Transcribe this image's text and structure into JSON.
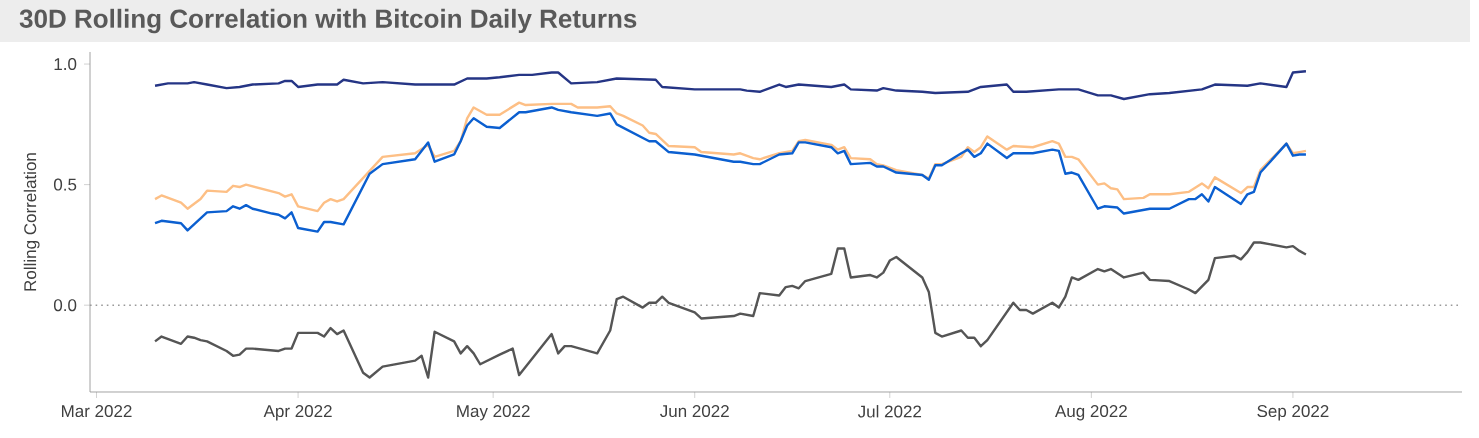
{
  "chart_data": {
    "type": "line",
    "title": "30D Rolling Correlation with Bitcoin Daily Returns",
    "ylabel": "Rolling Correlation",
    "xlim": [
      "2022-02-28",
      "2022-09-27"
    ],
    "ylim": [
      -0.36,
      1.05
    ],
    "xticks": [
      {
        "value": "2022-03-01",
        "label": "Mar 2022"
      },
      {
        "value": "2022-04-01",
        "label": "Apr 2022"
      },
      {
        "value": "2022-05-01",
        "label": "May 2022"
      },
      {
        "value": "2022-06-01",
        "label": "Jun 2022"
      },
      {
        "value": "2022-07-01",
        "label": "Jul 2022"
      },
      {
        "value": "2022-08-01",
        "label": "Aug 2022"
      },
      {
        "value": "2022-09-01",
        "label": "Sep 2022"
      }
    ],
    "yticks": [
      {
        "value": 0,
        "label": "0.0"
      },
      {
        "value": 0.5,
        "label": "0.5"
      },
      {
        "value": 1,
        "label": "1.0"
      }
    ],
    "ref_lines": [
      {
        "axis": "y",
        "value": 0,
        "color": "#999999",
        "line_style": "dotted"
      }
    ],
    "series": [
      {
        "color": "#fdbf85",
        "x": [
          "2022-03-10",
          "2022-03-11",
          "2022-03-14",
          "2022-03-15",
          "2022-03-17",
          "2022-03-18",
          "2022-03-21",
          "2022-03-22",
          "2022-03-23",
          "2022-03-24",
          "2022-03-29",
          "2022-03-30",
          "2022-03-31",
          "2022-04-01",
          "2022-04-04",
          "2022-04-05",
          "2022-04-06",
          "2022-04-07",
          "2022-04-08",
          "2022-04-14",
          "2022-04-19",
          "2022-04-21",
          "2022-04-22",
          "2022-04-25",
          "2022-04-26",
          "2022-04-27",
          "2022-04-28",
          "2022-04-30",
          "2022-05-02",
          "2022-05-05",
          "2022-05-06",
          "2022-05-10",
          "2022-05-13",
          "2022-05-14",
          "2022-05-17",
          "2022-05-19",
          "2022-05-20",
          "2022-05-21",
          "2022-05-24",
          "2022-05-25",
          "2022-05-26",
          "2022-05-28",
          "2022-06-01",
          "2022-06-02",
          "2022-06-07",
          "2022-06-08",
          "2022-06-10",
          "2022-06-11",
          "2022-06-14",
          "2022-06-16",
          "2022-06-17",
          "2022-06-18",
          "2022-06-22",
          "2022-06-23",
          "2022-06-24",
          "2022-06-25",
          "2022-06-28",
          "2022-06-29",
          "2022-06-30",
          "2022-07-02",
          "2022-07-06",
          "2022-07-07",
          "2022-07-08",
          "2022-07-09",
          "2022-07-12",
          "2022-07-13",
          "2022-07-14",
          "2022-07-15",
          "2022-07-16",
          "2022-07-19",
          "2022-07-20",
          "2022-07-23",
          "2022-07-26",
          "2022-07-27",
          "2022-07-28",
          "2022-07-29",
          "2022-07-30",
          "2022-08-02",
          "2022-08-03",
          "2022-08-04",
          "2022-08-05",
          "2022-08-06",
          "2022-08-09",
          "2022-08-10",
          "2022-08-13",
          "2022-08-16",
          "2022-08-18",
          "2022-08-19",
          "2022-08-20",
          "2022-08-24",
          "2022-08-25",
          "2022-08-26",
          "2022-08-27",
          "2022-08-31",
          "2022-09-01",
          "2022-09-02",
          "2022-09-03"
        ],
        "values": [
          0.44,
          0.455,
          0.425,
          0.4,
          0.44,
          0.475,
          0.47,
          0.495,
          0.49,
          0.5,
          0.465,
          0.45,
          0.46,
          0.41,
          0.39,
          0.425,
          0.44,
          0.43,
          0.44,
          0.615,
          0.63,
          0.665,
          0.615,
          0.64,
          0.68,
          0.775,
          0.82,
          0.79,
          0.79,
          0.84,
          0.83,
          0.835,
          0.835,
          0.82,
          0.82,
          0.825,
          0.795,
          0.785,
          0.745,
          0.715,
          0.71,
          0.66,
          0.655,
          0.635,
          0.625,
          0.63,
          0.61,
          0.605,
          0.63,
          0.64,
          0.68,
          0.685,
          0.665,
          0.645,
          0.655,
          0.61,
          0.605,
          0.585,
          0.58,
          0.56,
          0.54,
          0.525,
          0.585,
          0.585,
          0.615,
          0.655,
          0.635,
          0.655,
          0.7,
          0.645,
          0.66,
          0.655,
          0.68,
          0.67,
          0.615,
          0.615,
          0.605,
          0.5,
          0.505,
          0.485,
          0.48,
          0.44,
          0.445,
          0.46,
          0.46,
          0.47,
          0.505,
          0.485,
          0.53,
          0.465,
          0.49,
          0.49,
          0.56,
          0.67,
          0.63,
          0.635,
          0.64
        ]
      },
      {
        "color": "#0b5fd0",
        "x": [
          "2022-03-10",
          "2022-03-11",
          "2022-03-14",
          "2022-03-15",
          "2022-03-18",
          "2022-03-21",
          "2022-03-22",
          "2022-03-23",
          "2022-03-24",
          "2022-03-25",
          "2022-03-28",
          "2022-03-29",
          "2022-03-30",
          "2022-03-31",
          "2022-04-01",
          "2022-04-04",
          "2022-04-05",
          "2022-04-06",
          "2022-04-08",
          "2022-04-12",
          "2022-04-14",
          "2022-04-19",
          "2022-04-21",
          "2022-04-22",
          "2022-04-25",
          "2022-04-26",
          "2022-04-27",
          "2022-04-28",
          "2022-04-30",
          "2022-05-02",
          "2022-05-05",
          "2022-05-06",
          "2022-05-10",
          "2022-05-11",
          "2022-05-13",
          "2022-05-17",
          "2022-05-19",
          "2022-05-20",
          "2022-05-25",
          "2022-05-26",
          "2022-05-28",
          "2022-06-01",
          "2022-06-07",
          "2022-06-08",
          "2022-06-10",
          "2022-06-11",
          "2022-06-14",
          "2022-06-16",
          "2022-06-17",
          "2022-06-18",
          "2022-06-22",
          "2022-06-23",
          "2022-06-24",
          "2022-06-25",
          "2022-06-28",
          "2022-06-29",
          "2022-06-30",
          "2022-07-02",
          "2022-07-06",
          "2022-07-07",
          "2022-07-08",
          "2022-07-09",
          "2022-07-12",
          "2022-07-13",
          "2022-07-14",
          "2022-07-15",
          "2022-07-16",
          "2022-07-19",
          "2022-07-20",
          "2022-07-23",
          "2022-07-26",
          "2022-07-27",
          "2022-07-28",
          "2022-07-29",
          "2022-07-30",
          "2022-08-02",
          "2022-08-03",
          "2022-08-05",
          "2022-08-06",
          "2022-08-10",
          "2022-08-13",
          "2022-08-16",
          "2022-08-17",
          "2022-08-18",
          "2022-08-19",
          "2022-08-20",
          "2022-08-24",
          "2022-08-25",
          "2022-08-26",
          "2022-08-27",
          "2022-08-31",
          "2022-09-01",
          "2022-09-02",
          "2022-09-03"
        ],
        "values": [
          0.34,
          0.35,
          0.34,
          0.31,
          0.385,
          0.39,
          0.41,
          0.4,
          0.415,
          0.4,
          0.38,
          0.375,
          0.36,
          0.385,
          0.32,
          0.305,
          0.345,
          0.345,
          0.335,
          0.545,
          0.585,
          0.605,
          0.675,
          0.595,
          0.625,
          0.68,
          0.745,
          0.775,
          0.74,
          0.735,
          0.8,
          0.8,
          0.82,
          0.81,
          0.8,
          0.785,
          0.795,
          0.75,
          0.68,
          0.68,
          0.635,
          0.625,
          0.595,
          0.595,
          0.585,
          0.585,
          0.625,
          0.63,
          0.675,
          0.675,
          0.655,
          0.63,
          0.64,
          0.585,
          0.59,
          0.575,
          0.575,
          0.55,
          0.54,
          0.52,
          0.58,
          0.58,
          0.63,
          0.645,
          0.615,
          0.63,
          0.67,
          0.61,
          0.63,
          0.63,
          0.645,
          0.64,
          0.545,
          0.55,
          0.54,
          0.4,
          0.41,
          0.405,
          0.38,
          0.4,
          0.4,
          0.44,
          0.44,
          0.46,
          0.43,
          0.49,
          0.42,
          0.46,
          0.47,
          0.55,
          0.67,
          0.62,
          0.625,
          0.625
        ]
      },
      {
        "color": "#253585",
        "x": [
          "2022-03-10",
          "2022-03-12",
          "2022-03-15",
          "2022-03-16",
          "2022-03-18",
          "2022-03-21",
          "2022-03-23",
          "2022-03-25",
          "2022-03-29",
          "2022-03-30",
          "2022-03-31",
          "2022-04-01",
          "2022-04-04",
          "2022-04-07",
          "2022-04-08",
          "2022-04-11",
          "2022-04-14",
          "2022-04-19",
          "2022-04-22",
          "2022-04-25",
          "2022-04-27",
          "2022-04-30",
          "2022-05-02",
          "2022-05-05",
          "2022-05-07",
          "2022-05-10",
          "2022-05-11",
          "2022-05-13",
          "2022-05-17",
          "2022-05-20",
          "2022-05-26",
          "2022-05-27",
          "2022-06-01",
          "2022-06-08",
          "2022-06-09",
          "2022-06-11",
          "2022-06-14",
          "2022-06-15",
          "2022-06-17",
          "2022-06-22",
          "2022-06-24",
          "2022-06-25",
          "2022-06-29",
          "2022-06-30",
          "2022-07-02",
          "2022-07-06",
          "2022-07-08",
          "2022-07-13",
          "2022-07-15",
          "2022-07-19",
          "2022-07-20",
          "2022-07-22",
          "2022-07-27",
          "2022-07-30",
          "2022-08-02",
          "2022-08-04",
          "2022-08-06",
          "2022-08-10",
          "2022-08-13",
          "2022-08-18",
          "2022-08-20",
          "2022-08-25",
          "2022-08-27",
          "2022-08-31",
          "2022-09-01",
          "2022-09-03"
        ],
        "values": [
          0.91,
          0.92,
          0.92,
          0.925,
          0.915,
          0.9,
          0.905,
          0.915,
          0.92,
          0.93,
          0.93,
          0.905,
          0.915,
          0.915,
          0.935,
          0.92,
          0.925,
          0.915,
          0.915,
          0.915,
          0.94,
          0.94,
          0.945,
          0.955,
          0.955,
          0.965,
          0.965,
          0.92,
          0.925,
          0.94,
          0.935,
          0.905,
          0.895,
          0.895,
          0.89,
          0.885,
          0.915,
          0.905,
          0.915,
          0.905,
          0.915,
          0.895,
          0.89,
          0.9,
          0.89,
          0.885,
          0.88,
          0.885,
          0.905,
          0.915,
          0.885,
          0.885,
          0.895,
          0.895,
          0.87,
          0.87,
          0.855,
          0.875,
          0.88,
          0.895,
          0.915,
          0.91,
          0.92,
          0.905,
          0.965,
          0.97
        ]
      },
      {
        "color": "#555555",
        "x": [
          "2022-03-10",
          "2022-03-11",
          "2022-03-14",
          "2022-03-15",
          "2022-03-16",
          "2022-03-17",
          "2022-03-18",
          "2022-03-21",
          "2022-03-22",
          "2022-03-23",
          "2022-03-24",
          "2022-03-25",
          "2022-03-29",
          "2022-03-30",
          "2022-03-31",
          "2022-04-01",
          "2022-04-04",
          "2022-04-05",
          "2022-04-06",
          "2022-04-07",
          "2022-04-08",
          "2022-04-11",
          "2022-04-12",
          "2022-04-14",
          "2022-04-19",
          "2022-04-20",
          "2022-04-21",
          "2022-04-22",
          "2022-04-25",
          "2022-04-26",
          "2022-04-27",
          "2022-04-28",
          "2022-04-29",
          "2022-05-02",
          "2022-05-04",
          "2022-05-05",
          "2022-05-10",
          "2022-05-11",
          "2022-05-12",
          "2022-05-13",
          "2022-05-17",
          "2022-05-19",
          "2022-05-20",
          "2022-05-21",
          "2022-05-24",
          "2022-05-25",
          "2022-05-26",
          "2022-05-27",
          "2022-05-28",
          "2022-06-01",
          "2022-06-02",
          "2022-06-07",
          "2022-06-08",
          "2022-06-10",
          "2022-06-11",
          "2022-06-14",
          "2022-06-15",
          "2022-06-16",
          "2022-06-17",
          "2022-06-18",
          "2022-06-22",
          "2022-06-23",
          "2022-06-24",
          "2022-06-25",
          "2022-06-28",
          "2022-06-29",
          "2022-06-30",
          "2022-07-01",
          "2022-07-02",
          "2022-07-06",
          "2022-07-07",
          "2022-07-08",
          "2022-07-09",
          "2022-07-12",
          "2022-07-13",
          "2022-07-14",
          "2022-07-15",
          "2022-07-16",
          "2022-07-20",
          "2022-07-21",
          "2022-07-22",
          "2022-07-23",
          "2022-07-26",
          "2022-07-27",
          "2022-07-28",
          "2022-07-29",
          "2022-07-30",
          "2022-08-02",
          "2022-08-03",
          "2022-08-04",
          "2022-08-06",
          "2022-08-09",
          "2022-08-10",
          "2022-08-13",
          "2022-08-16",
          "2022-08-17",
          "2022-08-19",
          "2022-08-20",
          "2022-08-23",
          "2022-08-24",
          "2022-08-25",
          "2022-08-26",
          "2022-08-27",
          "2022-08-31",
          "2022-09-01",
          "2022-09-02",
          "2022-09-03"
        ],
        "values": [
          -0.15,
          -0.13,
          -0.16,
          -0.13,
          -0.135,
          -0.145,
          -0.15,
          -0.19,
          -0.21,
          -0.205,
          -0.18,
          -0.18,
          -0.19,
          -0.18,
          -0.18,
          -0.115,
          -0.115,
          -0.13,
          -0.095,
          -0.12,
          -0.105,
          -0.28,
          -0.3,
          -0.255,
          -0.23,
          -0.21,
          -0.3,
          -0.11,
          -0.15,
          -0.2,
          -0.17,
          -0.2,
          -0.245,
          -0.205,
          -0.18,
          -0.29,
          -0.12,
          -0.2,
          -0.17,
          -0.17,
          -0.2,
          -0.105,
          0.025,
          0.035,
          -0.01,
          0.01,
          0.01,
          0.035,
          0.01,
          -0.03,
          -0.055,
          -0.045,
          -0.035,
          -0.045,
          0.05,
          0.04,
          0.075,
          0.08,
          0.07,
          0.1,
          0.13,
          0.235,
          0.235,
          0.115,
          0.125,
          0.115,
          0.135,
          0.185,
          0.2,
          0.115,
          0.055,
          -0.115,
          -0.13,
          -0.105,
          -0.135,
          -0.135,
          -0.17,
          -0.145,
          0.01,
          -0.02,
          -0.02,
          -0.035,
          0.01,
          -0.01,
          0.035,
          0.115,
          0.105,
          0.15,
          0.14,
          0.15,
          0.115,
          0.135,
          0.105,
          0.1,
          0.065,
          0.05,
          0.105,
          0.195,
          0.205,
          0.19,
          0.22,
          0.26,
          0.26,
          0.24,
          0.245,
          0.225,
          0.21
        ]
      }
    ]
  }
}
